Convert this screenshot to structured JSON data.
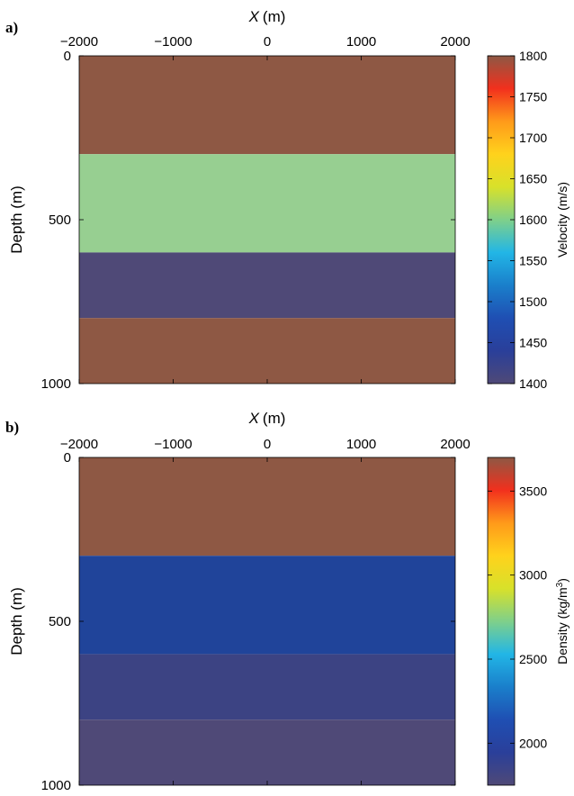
{
  "chart_data": [
    {
      "type": "heatmap",
      "panel_label": "a)",
      "xlabel_italic": "X",
      "xlabel_unit": "(m)",
      "ylabel": "Depth (m)",
      "x_range": [
        -2000,
        2000
      ],
      "y_range": [
        0,
        1000
      ],
      "y_reversed": true,
      "x_ticks": [
        -2000,
        -1000,
        0,
        1000,
        2000
      ],
      "x_tick_labels": [
        "−2000",
        "−1000",
        "0",
        "1000",
        "2000"
      ],
      "y_ticks": [
        0,
        500,
        1000
      ],
      "y_tick_labels": [
        "0",
        "500",
        "1000"
      ],
      "colorbar": {
        "label": "Velocity (m/s)",
        "range": [
          1400,
          1800
        ],
        "ticks": [
          1400,
          1450,
          1500,
          1550,
          1600,
          1650,
          1700,
          1750,
          1800
        ],
        "tick_labels": [
          "1400",
          "1450",
          "1500",
          "1550",
          "1600",
          "1650",
          "1700",
          "1750",
          "1800"
        ]
      },
      "layers": [
        {
          "depth_top": 0,
          "depth_bottom": 300,
          "value": 1800,
          "color": "#8e5844"
        },
        {
          "depth_top": 300,
          "depth_bottom": 600,
          "value": 1600,
          "color": "#97cf91"
        },
        {
          "depth_top": 600,
          "depth_bottom": 800,
          "value": 1400,
          "color": "#4f4977"
        },
        {
          "depth_top": 800,
          "depth_bottom": 1000,
          "value": 1800,
          "color": "#8e5844"
        }
      ]
    },
    {
      "type": "heatmap",
      "panel_label": "b)",
      "xlabel_italic": "X",
      "xlabel_unit": "(m)",
      "ylabel": "Depth (m)",
      "x_range": [
        -2000,
        2000
      ],
      "y_range": [
        0,
        1000
      ],
      "y_reversed": true,
      "x_ticks": [
        -2000,
        -1000,
        0,
        1000,
        2000
      ],
      "x_tick_labels": [
        "−2000",
        "−1000",
        "0",
        "1000",
        "2000"
      ],
      "y_ticks": [
        0,
        500,
        1000
      ],
      "y_tick_labels": [
        "0",
        "500",
        "1000"
      ],
      "colorbar": {
        "label": "Density (kg/m",
        "label_sup": "3",
        "label_end": ")",
        "range": [
          1750,
          3700
        ],
        "ticks": [
          2000,
          2500,
          3000,
          3500
        ],
        "tick_labels": [
          "2000",
          "2500",
          "3000",
          "3500"
        ]
      },
      "layers": [
        {
          "depth_top": 0,
          "depth_bottom": 300,
          "value": 3700,
          "color": "#8e5844"
        },
        {
          "depth_top": 300,
          "depth_bottom": 600,
          "value": 2000,
          "color": "#20449a"
        },
        {
          "depth_top": 600,
          "depth_bottom": 800,
          "value": 1800,
          "color": "#3c4383"
        },
        {
          "depth_top": 800,
          "depth_bottom": 1000,
          "value": 1750,
          "color": "#4f4977"
        }
      ]
    }
  ],
  "colormap_stops": [
    "#4f4977",
    "#2a3f9a",
    "#1f4fb3",
    "#1a7fcb",
    "#22b6e6",
    "#7fd08a",
    "#d8e12a",
    "#ffd21c",
    "#ff9a1a",
    "#f2301d",
    "#8e5844"
  ]
}
